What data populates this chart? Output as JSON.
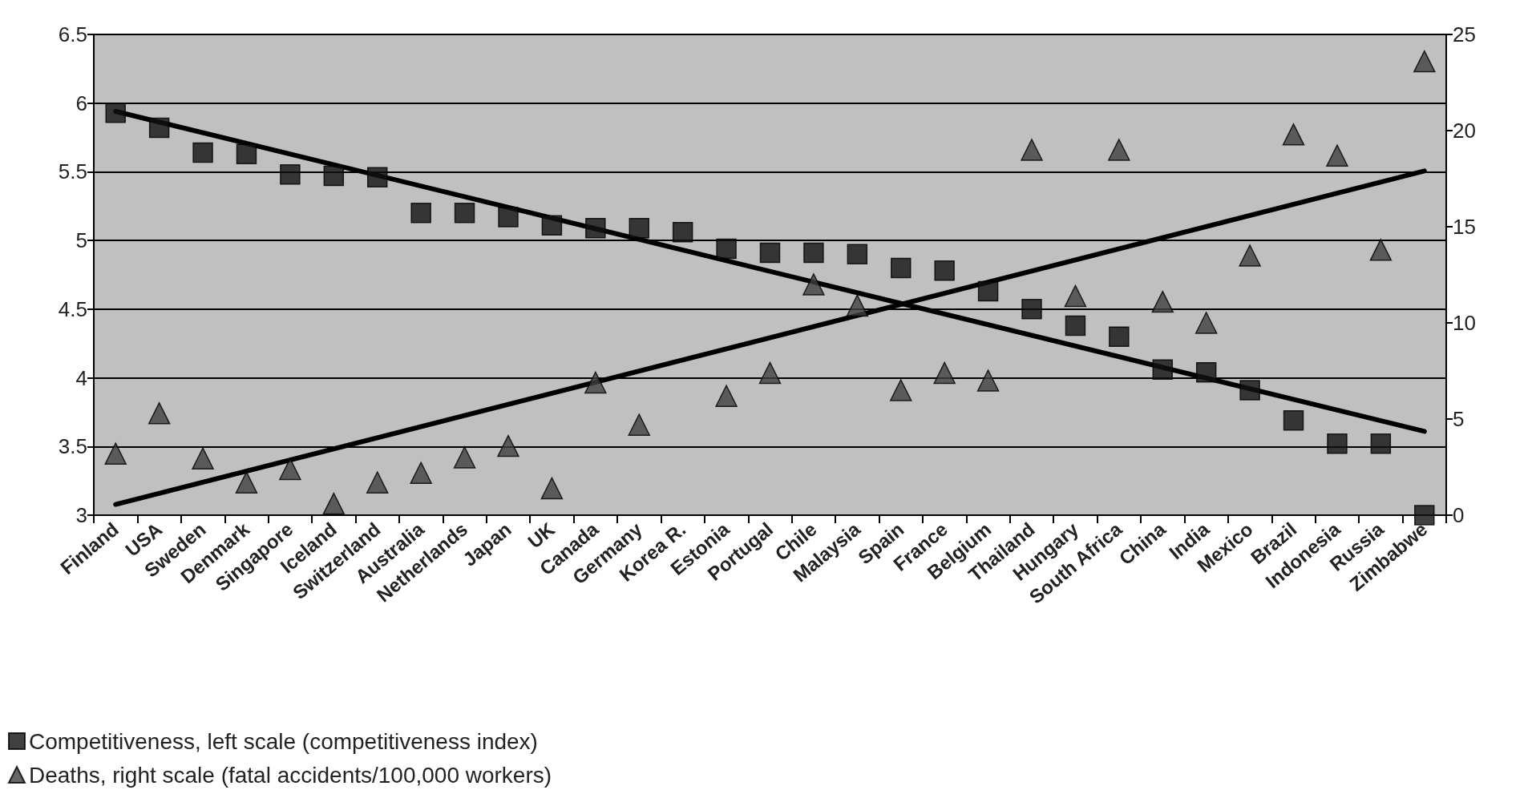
{
  "chart_data": {
    "type": "scatter",
    "categories": [
      "Finland",
      "USA",
      "Sweden",
      "Denmark",
      "Singapore",
      "Iceland",
      "Switzerland",
      "Australia",
      "Netherlands",
      "Japan",
      "UK",
      "Canada",
      "Germany",
      "Korea R.",
      "Estonia",
      "Portugal",
      "Chile",
      "Malaysia",
      "Spain",
      "France",
      "Belgium",
      "Thailand",
      "Hungary",
      "South Africa",
      "China",
      "India",
      "Mexico",
      "Brazil",
      "Indonesia",
      "Russia",
      "Zimbabwe"
    ],
    "series": [
      {
        "name": "Competitiveness, left scale (competitiveness index)",
        "color": "#111111",
        "marker": "square",
        "values": [
          5.93,
          5.82,
          5.64,
          5.63,
          5.48,
          5.47,
          5.46,
          5.2,
          5.2,
          5.17,
          5.11,
          5.09,
          5.09,
          5.06,
          4.94,
          4.91,
          4.91,
          4.9,
          4.8,
          4.78,
          4.63,
          4.5,
          4.38,
          4.3,
          4.06,
          4.04,
          3.91,
          3.69,
          3.52,
          3.52,
          3.0
        ]
      },
      {
        "name": "Deaths, right scale (fatal accidents/100,000 workers)",
        "color": "#404040",
        "marker": "triangle",
        "axis": "y2",
        "values": [
          3.2,
          5.3,
          2.95,
          1.7,
          2.4,
          0.6,
          1.7,
          2.2,
          3.0,
          3.6,
          1.4,
          6.9,
          4.7,
          null,
          6.2,
          7.4,
          12.0,
          10.9,
          6.5,
          7.4,
          7.0,
          19.0,
          11.4,
          19.0,
          11.1,
          10.0,
          13.5,
          19.8,
          18.7,
          13.8,
          23.6
        ]
      },
      {
        "type": "line",
        "color": "#000000",
        "x": [
          "Finland",
          "Zimbabwe"
        ],
        "values": [
          5.94,
          3.61
        ]
      },
      {
        "type": "line",
        "color": "#000000",
        "axis": "y2",
        "x": [
          "Finland",
          "Zimbabwe"
        ],
        "values": [
          0.56,
          17.9
        ]
      }
    ],
    "ylim": [
      3,
      6.5
    ],
    "yticks": [
      3,
      3.5,
      4,
      4.5,
      5,
      5.5,
      6,
      6.5
    ],
    "y2lim": [
      0,
      25
    ],
    "y2ticks": [
      0,
      5,
      10,
      15,
      20,
      25
    ],
    "grid": "y",
    "legend": "bottom left",
    "line_style": "solid"
  }
}
